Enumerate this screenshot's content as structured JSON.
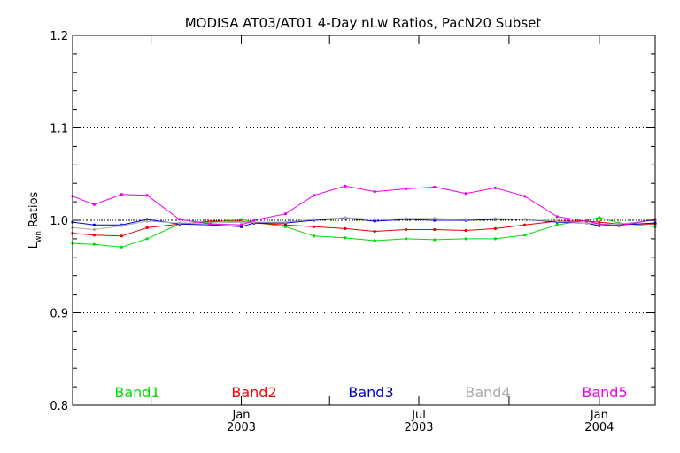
{
  "chart_data": {
    "type": "line",
    "title": "MODISA AT03/AT01 4-Day nLw Ratios, PacN20 Subset",
    "ylabel_main": "L",
    "ylabel_sub": "wn",
    "ylabel_rest": " Ratios",
    "ylim": [
      0.8,
      1.2
    ],
    "y_ticks": [
      {
        "value": 0.8,
        "label": "0.8"
      },
      {
        "value": 0.9,
        "label": "0.9"
      },
      {
        "value": 1.0,
        "label": "1.0"
      },
      {
        "value": 1.1,
        "label": "1.1"
      },
      {
        "value": 1.2,
        "label": "1.2"
      }
    ],
    "gridlines": [
      0.9,
      1.0,
      1.1
    ],
    "x_domain": [
      "2002-07-13",
      "2004-02-27"
    ],
    "x_major_ticks": [
      {
        "date": "2003-01-01",
        "line1": "Jan",
        "line2": "2003"
      },
      {
        "date": "2003-07-01",
        "line1": "Jul",
        "line2": "2003"
      },
      {
        "date": "2004-01-01",
        "line1": "Jan",
        "line2": "2004"
      }
    ],
    "x_minor_ticks": [
      "2002-10-01",
      "2003-04-01",
      "2003-10-01"
    ],
    "x": [
      "2002-07-13",
      "2002-08-04",
      "2002-09-01",
      "2002-09-27",
      "2002-10-30",
      "2002-12-01",
      "2003-01-01",
      "2003-01-14",
      "2003-02-15",
      "2003-03-16",
      "2003-04-17",
      "2003-05-17",
      "2003-06-18",
      "2003-07-17",
      "2003-08-18",
      "2003-09-17",
      "2003-10-17",
      "2003-11-19",
      "2003-12-19",
      "2004-01-01",
      "2004-01-21",
      "2004-02-27"
    ],
    "series": [
      {
        "name": "Band1",
        "color": "#00dd00",
        "values": [
          0.975,
          0.974,
          0.971,
          0.98,
          0.996,
          0.998,
          1.001,
          0.998,
          0.993,
          0.983,
          0.981,
          0.978,
          0.98,
          0.979,
          0.98,
          0.98,
          0.984,
          0.995,
          1.0,
          1.003,
          0.997,
          0.993
        ]
      },
      {
        "name": "Band2",
        "color": "#ee0000",
        "values": [
          0.986,
          0.984,
          0.983,
          0.992,
          0.996,
          0.999,
          0.999,
          0.997,
          0.995,
          0.993,
          0.991,
          0.988,
          0.99,
          0.99,
          0.989,
          0.991,
          0.995,
          0.999,
          0.999,
          0.998,
          0.996,
          0.996
        ]
      },
      {
        "name": "Band3",
        "color": "#0000cc",
        "values": [
          0.998,
          0.995,
          0.995,
          1.001,
          0.996,
          0.995,
          0.993,
          0.997,
          0.997,
          1.0,
          1.002,
          0.999,
          1.001,
          1.0,
          1.0,
          1.001,
          1.001,
          0.998,
          0.997,
          0.994,
          0.995,
          0.997
        ]
      },
      {
        "name": "Band4",
        "color": "#aaaaaa",
        "values": [
          0.992,
          0.99,
          0.994,
          0.999,
          0.997,
          0.997,
          0.998,
          0.998,
          0.998,
          1.001,
          1.003,
          1.001,
          1.002,
          1.002,
          1.001,
          1.002,
          1.001,
          0.999,
          0.997,
          0.996,
          0.996,
          1.0
        ]
      },
      {
        "name": "Band5",
        "color": "#ee00ee",
        "values": [
          1.026,
          1.017,
          1.028,
          1.027,
          1.001,
          0.996,
          0.995,
          1.0,
          1.007,
          1.027,
          1.037,
          1.031,
          1.034,
          1.036,
          1.029,
          1.035,
          1.026,
          1.004,
          0.999,
          0.996,
          0.994,
          1.001
        ]
      }
    ],
    "reference_line": 1.0,
    "legend_position": "bottom"
  }
}
